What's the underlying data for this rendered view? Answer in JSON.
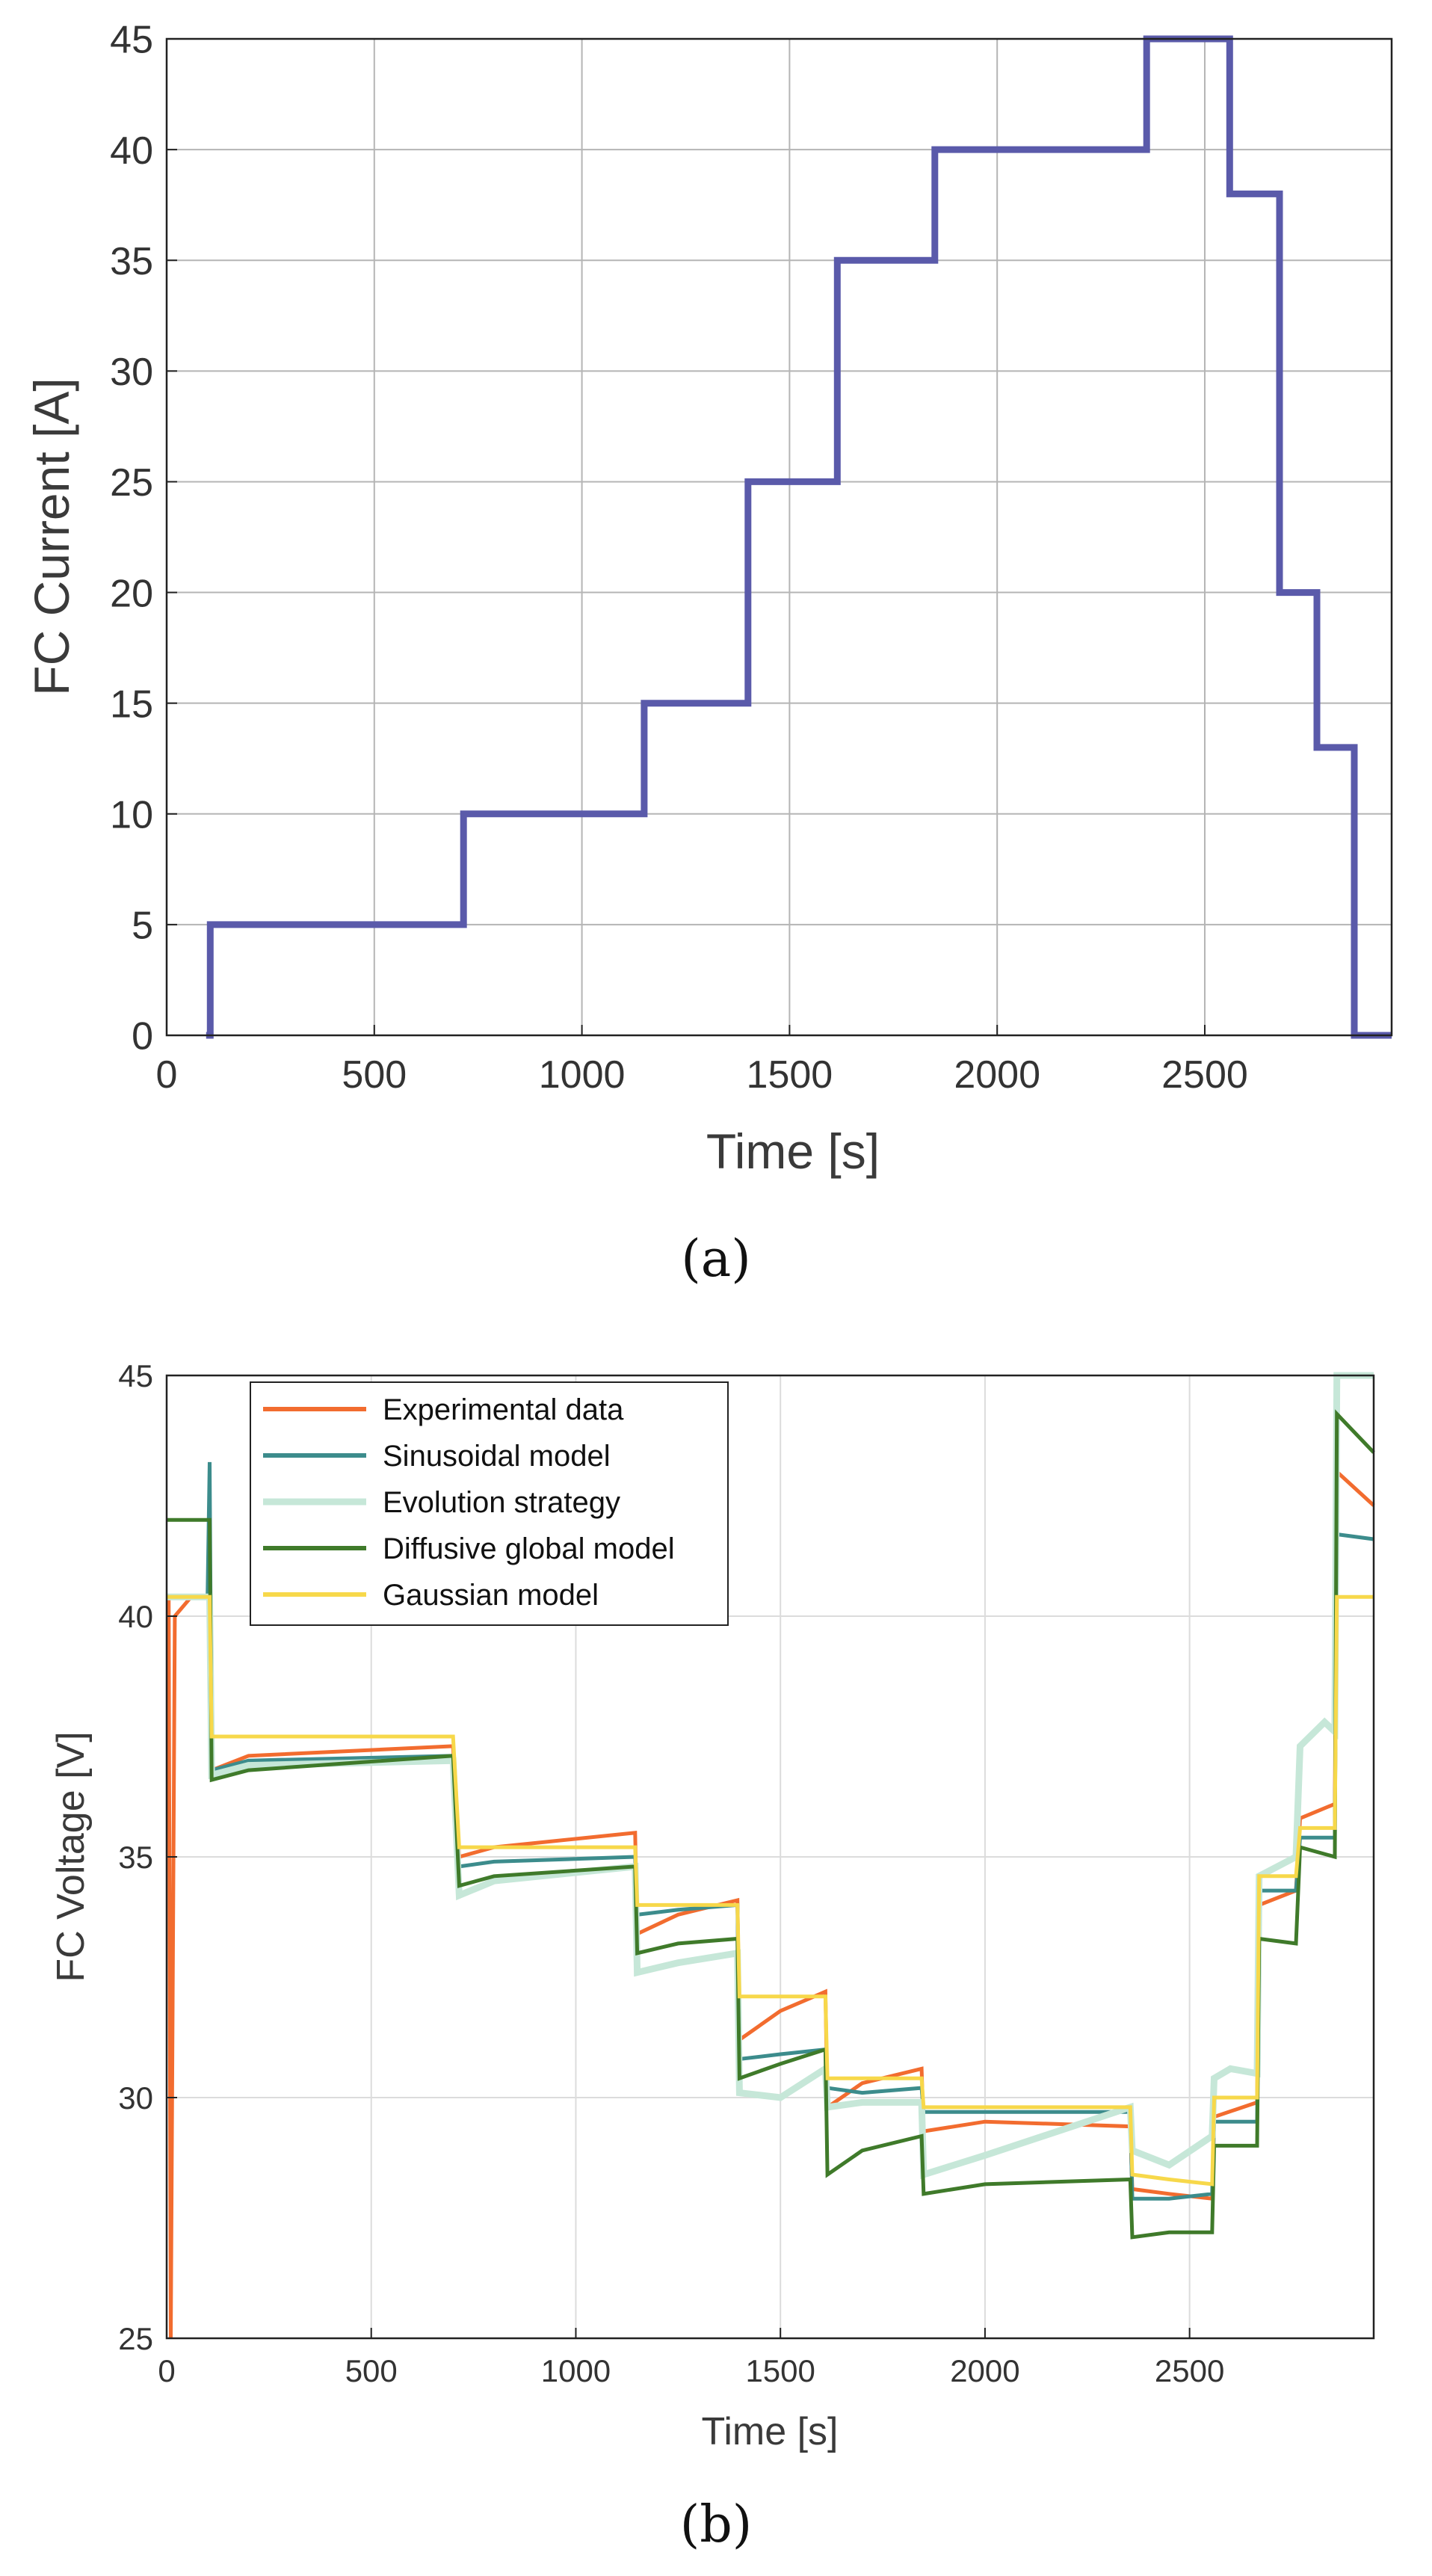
{
  "chart_data": [
    {
      "type": "line",
      "panel_label": "(a)",
      "title": "",
      "xlabel": "Time [s]",
      "ylabel": "FC Current [A]",
      "xlim": [
        0,
        2950
      ],
      "ylim": [
        0,
        45
      ],
      "xticks": [
        0,
        500,
        1000,
        1500,
        2000,
        2500
      ],
      "yticks": [
        0,
        5,
        10,
        15,
        20,
        25,
        30,
        35,
        40,
        45
      ],
      "grid": true,
      "color": "#5a5aaa",
      "series": [
        {
          "name": "FC Current",
          "x": [
            95,
            105,
            105,
            715,
            715,
            1150,
            1150,
            1400,
            1400,
            1615,
            1615,
            1850,
            1850,
            2360,
            2360,
            2560,
            2560,
            2680,
            2680,
            2770,
            2770,
            2860,
            2860,
            2950
          ],
          "y": [
            0,
            0,
            5,
            5,
            10,
            10,
            15,
            15,
            25,
            25,
            35,
            35,
            40,
            40,
            45,
            45,
            38,
            38,
            20,
            20,
            13,
            13,
            0,
            0
          ]
        }
      ]
    },
    {
      "type": "line",
      "panel_label": "(b)",
      "title": "",
      "xlabel": "Time [s]",
      "ylabel": "FC Voltage [V]",
      "xlim": [
        0,
        2950
      ],
      "ylim": [
        25,
        45
      ],
      "xticks": [
        0,
        500,
        1000,
        1500,
        2000,
        2500
      ],
      "yticks": [
        25,
        30,
        35,
        40,
        45
      ],
      "grid": true,
      "legend_position": "top-left",
      "series": [
        {
          "name": "Experimental data",
          "color": "#f26c2f",
          "x": [
            0,
            5,
            10,
            20,
            60,
            105,
            110,
            200,
            700,
            715,
            800,
            1145,
            1150,
            1250,
            1395,
            1400,
            1500,
            1610,
            1615,
            1700,
            1845,
            1850,
            2000,
            2355,
            2360,
            2450,
            2555,
            2560,
            2665,
            2670,
            2760,
            2770,
            2855,
            2860,
            2950
          ],
          "y": [
            40.4,
            40.4,
            25.0,
            40.0,
            40.4,
            40.4,
            36.8,
            37.1,
            37.3,
            35.0,
            35.2,
            35.5,
            33.4,
            33.8,
            34.1,
            31.2,
            31.8,
            32.2,
            29.8,
            30.3,
            30.6,
            29.3,
            29.5,
            29.4,
            28.1,
            28.0,
            27.9,
            29.6,
            29.9,
            34.0,
            34.3,
            35.8,
            36.1,
            43.0,
            42.3
          ]
        },
        {
          "name": "Sinusoidal model",
          "color": "#3c8c8c",
          "x": [
            0,
            100,
            105,
            110,
            200,
            700,
            715,
            800,
            1145,
            1150,
            1250,
            1395,
            1400,
            1500,
            1610,
            1615,
            1700,
            1845,
            1850,
            2000,
            2355,
            2360,
            2450,
            2555,
            2560,
            2665,
            2670,
            2760,
            2770,
            2855,
            2860,
            2950
          ],
          "y": [
            40.4,
            40.4,
            43.2,
            36.8,
            37.0,
            37.1,
            34.8,
            34.9,
            35.0,
            33.8,
            33.9,
            34.0,
            30.8,
            30.9,
            31.0,
            30.2,
            30.1,
            30.2,
            29.7,
            29.7,
            29.7,
            27.9,
            27.9,
            28.0,
            29.5,
            29.5,
            34.3,
            34.3,
            35.4,
            35.4,
            41.7,
            41.6
          ]
        },
        {
          "name": "Evolution strategy",
          "color": "#c6e7d8",
          "x": [
            0,
            100,
            105,
            110,
            200,
            700,
            715,
            800,
            1145,
            1150,
            1250,
            1395,
            1400,
            1500,
            1610,
            1615,
            1700,
            1845,
            1850,
            2000,
            2355,
            2360,
            2450,
            2555,
            2560,
            2600,
            2665,
            2670,
            2760,
            2770,
            2830,
            2855,
            2860,
            2950
          ],
          "y": [
            40.4,
            40.4,
            40.4,
            36.7,
            36.9,
            37.0,
            34.2,
            34.5,
            34.8,
            32.6,
            32.8,
            33.0,
            30.1,
            30.0,
            30.6,
            29.8,
            29.9,
            29.9,
            28.4,
            28.8,
            29.8,
            28.9,
            28.6,
            29.2,
            30.4,
            30.6,
            30.5,
            34.6,
            35.0,
            37.3,
            37.8,
            37.6,
            45.0,
            45.0
          ]
        },
        {
          "name": "Diffusive global model",
          "color": "#3f7a2a",
          "x": [
            0,
            100,
            105,
            110,
            200,
            700,
            715,
            800,
            1145,
            1150,
            1250,
            1395,
            1400,
            1500,
            1610,
            1615,
            1700,
            1845,
            1850,
            2000,
            2355,
            2360,
            2450,
            2555,
            2560,
            2665,
            2670,
            2760,
            2770,
            2855,
            2860,
            2950
          ],
          "y": [
            42.0,
            42.0,
            42.0,
            36.6,
            36.8,
            37.1,
            34.4,
            34.6,
            34.8,
            33.0,
            33.2,
            33.3,
            30.4,
            30.7,
            31.0,
            28.4,
            28.9,
            29.2,
            28.0,
            28.2,
            28.3,
            27.1,
            27.2,
            27.2,
            29.0,
            29.0,
            33.3,
            33.2,
            35.2,
            35.0,
            44.2,
            43.4
          ]
        },
        {
          "name": "Gaussian model",
          "color": "#f7d84a",
          "x": [
            0,
            100,
            105,
            110,
            200,
            700,
            715,
            800,
            1145,
            1150,
            1250,
            1395,
            1400,
            1500,
            1610,
            1615,
            1700,
            1845,
            1850,
            2000,
            2355,
            2360,
            2450,
            2555,
            2560,
            2665,
            2670,
            2760,
            2770,
            2855,
            2860,
            2950
          ],
          "y": [
            40.4,
            40.4,
            40.4,
            37.5,
            37.5,
            37.5,
            35.2,
            35.2,
            35.2,
            34.0,
            34.0,
            34.0,
            32.1,
            32.1,
            32.1,
            30.4,
            30.4,
            30.4,
            29.8,
            29.8,
            29.8,
            28.4,
            28.3,
            28.2,
            30.0,
            30.0,
            34.6,
            34.6,
            35.6,
            35.6,
            40.4,
            40.4
          ]
        }
      ]
    }
  ]
}
